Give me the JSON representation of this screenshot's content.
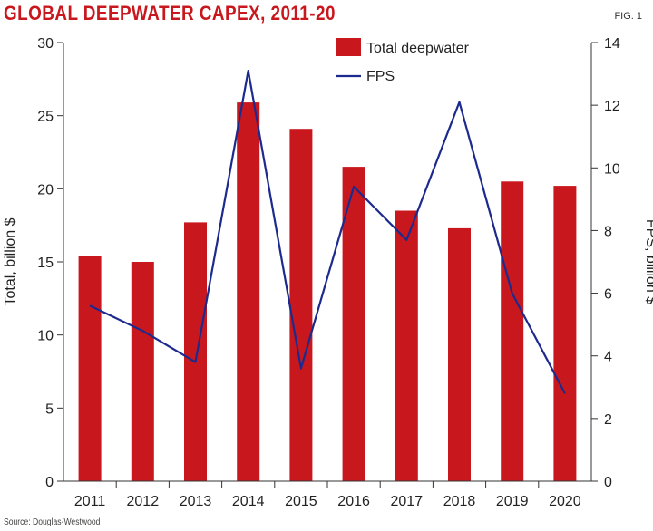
{
  "header": {
    "title": "GLOBAL DEEPWATER CAPEX, 2011-20",
    "fig": "FIG. 1"
  },
  "footer": {
    "source": "Source: Douglas-Westwood"
  },
  "colors": {
    "bar": "#c8181e",
    "line": "#1c2a8e",
    "title": "#c8181e",
    "axis": "#333333"
  },
  "chart_data": {
    "type": "bar",
    "categories": [
      "2011",
      "2012",
      "2013",
      "2014",
      "2015",
      "2016",
      "2017",
      "2018",
      "2019",
      "2020"
    ],
    "series": [
      {
        "name": "Total deepwater",
        "type": "bar",
        "axis": "left",
        "values": [
          15.4,
          15.0,
          17.7,
          25.9,
          24.1,
          21.5,
          18.5,
          17.3,
          20.5,
          20.2
        ]
      },
      {
        "name": "FPS",
        "type": "line",
        "axis": "right",
        "values": [
          5.6,
          4.8,
          3.8,
          13.1,
          3.6,
          9.4,
          7.7,
          12.1,
          6.0,
          2.8
        ]
      }
    ],
    "ylabel": "Total, billion $",
    "y2label": "FPS, billion $",
    "ylim": [
      0,
      30
    ],
    "y2lim": [
      0,
      14
    ],
    "yticks": [
      "0",
      "5",
      "10",
      "15",
      "20",
      "25",
      "30"
    ],
    "y2ticks": [
      "0",
      "2",
      "4",
      "6",
      "8",
      "10",
      "12",
      "14"
    ],
    "legend_position": "top-center",
    "grid": false
  }
}
